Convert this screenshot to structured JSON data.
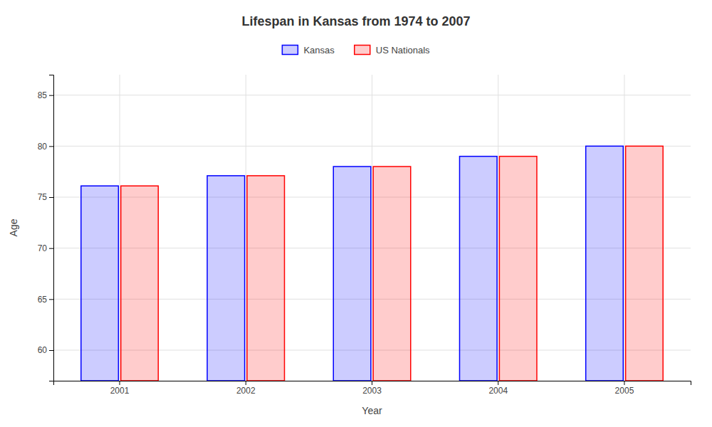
{
  "chart_data": {
    "type": "bar",
    "title": "Lifespan in Kansas from 1974 to 2007",
    "xlabel": "Year",
    "ylabel": "Age",
    "categories": [
      "2001",
      "2002",
      "2003",
      "2004",
      "2005"
    ],
    "series": [
      {
        "name": "Kansas",
        "color": "#0000ff",
        "values": [
          76.1,
          77.1,
          78.0,
          79.0,
          80.0
        ]
      },
      {
        "name": "US Nationals",
        "color": "#ff0000",
        "values": [
          76.1,
          77.1,
          78.0,
          79.0,
          80.0
        ]
      }
    ],
    "ylim": [
      57,
      87
    ],
    "yticks": [
      60,
      65,
      70,
      75,
      80,
      85
    ],
    "grid": true,
    "legend": "top"
  }
}
